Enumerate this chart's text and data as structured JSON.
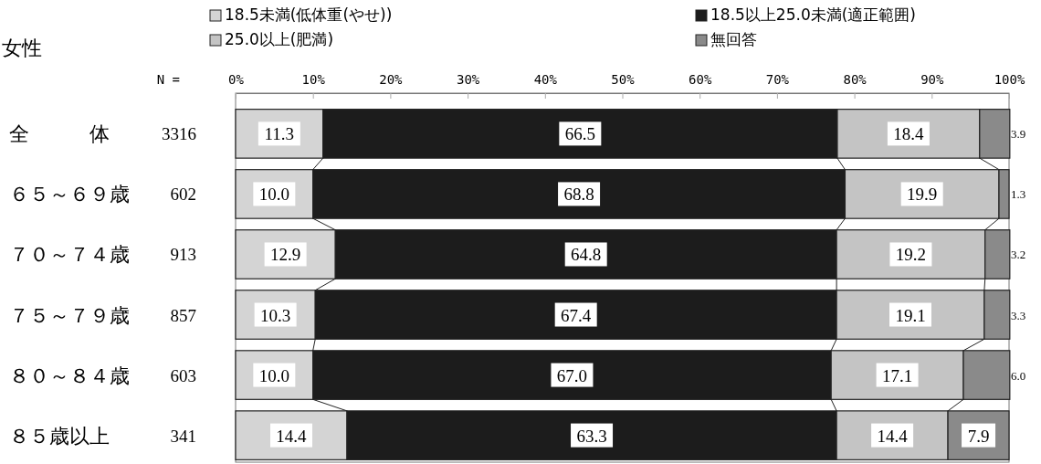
{
  "chart_data": {
    "type": "bar",
    "orientation": "horizontal",
    "stacked": true,
    "title": "女性",
    "categories": [
      "全　　　体",
      "６５～６９歳",
      "７０～７４歳",
      "７５～７９歳",
      "８０～８４歳",
      "８５歳以上"
    ],
    "annotations": [
      "N =",
      "3316",
      "602",
      "913",
      "857",
      "603",
      "341"
    ],
    "series": [
      {
        "name": "18.5未満(低体重(やせ))",
        "color": "#d4d4d4",
        "values": [
          11.3,
          10.0,
          12.9,
          10.3,
          10.0,
          14.4
        ],
        "value_labels": [
          "11.3",
          "10.0",
          "12.9",
          "10.3",
          "10.0",
          "14.4"
        ]
      },
      {
        "name": "18.5以上25.0未満(適正範囲)",
        "color": "#1c1c1c",
        "values": [
          66.5,
          68.8,
          64.8,
          67.4,
          67.0,
          63.3
        ],
        "value_labels": [
          "66.5",
          "68.8",
          "64.8",
          "67.4",
          "67.0",
          "63.3"
        ]
      },
      {
        "name": "25.0以上(肥満)",
        "color": "#c4c4c4",
        "values": [
          18.4,
          19.9,
          19.2,
          19.1,
          17.1,
          14.4
        ],
        "value_labels": [
          "18.4",
          "19.9",
          "19.2",
          "19.1",
          "17.1",
          "14.4"
        ]
      },
      {
        "name": "無回答",
        "color": "#8a8a8a",
        "values": [
          3.9,
          1.3,
          3.2,
          3.3,
          6.0,
          7.9
        ],
        "value_labels": [
          "3.9",
          "1.3",
          "3.2",
          "3.3",
          "6.0",
          "7.9"
        ]
      }
    ],
    "xlim": [
      0,
      100
    ],
    "xticks": [
      {
        "value": 0,
        "label": "0%"
      },
      {
        "value": 10,
        "label": "10%"
      },
      {
        "value": 20,
        "label": "20%"
      },
      {
        "value": 30,
        "label": "30%"
      },
      {
        "value": 40,
        "label": "40%"
      },
      {
        "value": 50,
        "label": "50%"
      },
      {
        "value": 60,
        "label": "60%"
      },
      {
        "value": 70,
        "label": "70%"
      },
      {
        "value": 80,
        "label": "80%"
      },
      {
        "value": 90,
        "label": "90%"
      },
      {
        "value": 100,
        "label": "100%"
      }
    ],
    "legend": "top",
    "grid": false
  }
}
